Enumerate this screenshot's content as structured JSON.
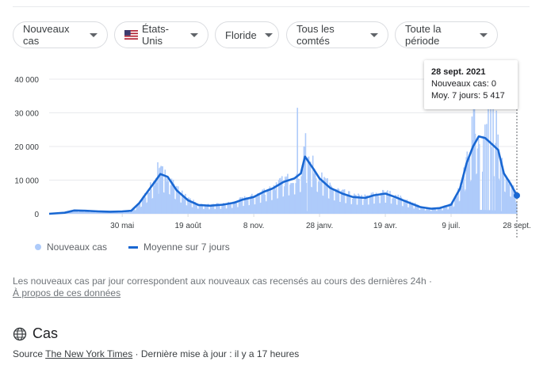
{
  "filters": {
    "metric": "Nouveaux cas",
    "country": "États-Unis",
    "state": "Floride",
    "county": "Tous les comtés",
    "period": "Toute la période"
  },
  "tooltip": {
    "date": "28 sept. 2021",
    "new_cases": "Nouveaux cas: 0",
    "avg7": "Moy. 7 jours: 5 417"
  },
  "legend": {
    "bars": "Nouveaux cas",
    "line": "Moyenne sur 7 jours"
  },
  "note": "Les nouveaux cas par jour correspondent aux nouveaux cas recensés au cours des dernières 24h",
  "note_sep": "·",
  "about_link": "À propos de ces données",
  "section_title": "Cas",
  "source": {
    "prefix": "Source",
    "link": "The New York Times",
    "suffix": "· Dernière mise à jour : il y a 17 heures"
  },
  "colors": {
    "bars": "#aecbfa",
    "line": "#1967d2",
    "grid": "#e8eaed"
  },
  "chart_data": {
    "type": "bar",
    "x_ticks": [
      "30 mai",
      "19 août",
      "8 nov.",
      "28 janv.",
      "19 avr.",
      "9 juil.",
      "28 sept."
    ],
    "y_ticks": [
      "0",
      "10 000",
      "20 000",
      "30 000",
      "40 000"
    ],
    "ylim": [
      0,
      40000
    ],
    "series": [
      {
        "name": "Moyenne sur 7 jours",
        "type": "line",
        "x": [
          "2020-03-01",
          "2020-03-20",
          "2020-04-01",
          "2020-04-15",
          "2020-05-01",
          "2020-05-15",
          "2020-05-30",
          "2020-06-10",
          "2020-06-20",
          "2020-06-30",
          "2020-07-10",
          "2020-07-16",
          "2020-07-25",
          "2020-08-05",
          "2020-08-19",
          "2020-09-01",
          "2020-09-15",
          "2020-10-01",
          "2020-10-15",
          "2020-10-25",
          "2020-11-08",
          "2020-11-20",
          "2020-12-01",
          "2020-12-15",
          "2020-12-28",
          "2021-01-05",
          "2021-01-10",
          "2021-01-20",
          "2021-01-28",
          "2021-02-10",
          "2021-02-25",
          "2021-03-10",
          "2021-03-25",
          "2021-04-05",
          "2021-04-19",
          "2021-05-01",
          "2021-05-15",
          "2021-06-01",
          "2021-06-15",
          "2021-06-25",
          "2021-07-09",
          "2021-07-20",
          "2021-07-28",
          "2021-08-05",
          "2021-08-12",
          "2021-08-20",
          "2021-08-27",
          "2021-09-05",
          "2021-09-12",
          "2021-09-20",
          "2021-09-28"
        ],
        "values": [
          0,
          300,
          1000,
          900,
          700,
          600,
          700,
          900,
          3200,
          6500,
          9800,
          11800,
          11000,
          7000,
          4000,
          2600,
          2400,
          2700,
          3300,
          4200,
          5000,
          6500,
          7500,
          9500,
          10500,
          12000,
          17000,
          13500,
          10500,
          7700,
          6000,
          5000,
          4700,
          5500,
          6000,
          5000,
          3600,
          2000,
          1500,
          1700,
          2700,
          7500,
          15000,
          20000,
          23000,
          22500,
          21000,
          19000,
          12000,
          9000,
          5417
        ]
      },
      {
        "name": "Nouveaux cas",
        "type": "bar",
        "peaks": [
          {
            "x": "2020-07-12",
            "value": 15300
          },
          {
            "x": "2020-12-31",
            "value": 31500
          },
          {
            "x": "2021-01-08",
            "value": 20000
          },
          {
            "x": "2021-08-06",
            "value": 38000
          }
        ],
        "last": {
          "x": "2021-09-28",
          "value": 0
        }
      }
    ]
  }
}
